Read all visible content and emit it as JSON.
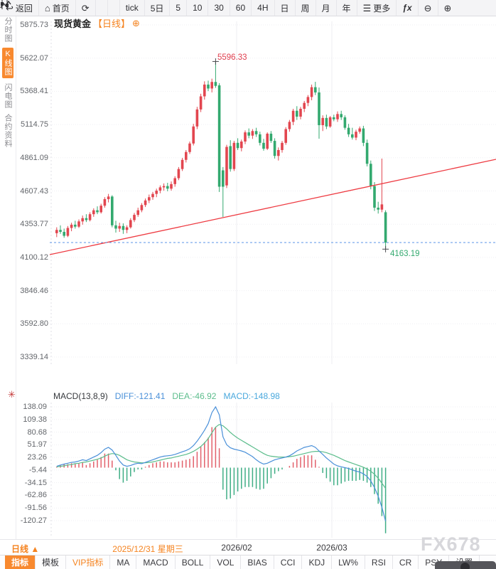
{
  "toolbar": {
    "back": "返回",
    "home": "首页",
    "tick": "tick",
    "d5": "5日",
    "m5": "5",
    "m10": "10",
    "m30": "30",
    "m60": "60",
    "h4": "4H",
    "day": "日",
    "week": "周",
    "month": "月",
    "year": "年",
    "more": "更多",
    "fx": "fx"
  },
  "sidebar": {
    "items": [
      {
        "label": "分时图",
        "active": false
      },
      {
        "label": "K线图",
        "active": true
      },
      {
        "label": "闪电图",
        "active": false
      },
      {
        "label": "合约资料",
        "active": false
      }
    ]
  },
  "chart": {
    "title": "现货黄金",
    "period_label": "【日线】",
    "y_axis": [
      "5875.73",
      "5622.07",
      "5368.41",
      "5114.75",
      "4861.09",
      "4607.43",
      "4353.77",
      "4100.12",
      "3846.46",
      "3592.80",
      "3339.14"
    ],
    "annotations": {
      "high": "5596.33",
      "low": "4163.19"
    }
  },
  "macd": {
    "title": "MACD(13,8,9)",
    "diff_label": "DIFF:-121.41",
    "dea_label": "DEA:-46.92",
    "macd_label": "MACD:-148.98",
    "y_axis": [
      "138.09",
      "109.38",
      "80.68",
      "51.97",
      "23.26",
      "-5.44",
      "-34.15",
      "-62.86",
      "-91.56",
      "-120.27"
    ]
  },
  "status": {
    "period": "日线",
    "arrow": "▲",
    "date": "2025/12/31 星期三",
    "month1": "2026/02",
    "month2": "2026/03"
  },
  "watermark": "FX678",
  "tabs": [
    {
      "label": "指标",
      "active": true
    },
    {
      "label": "模板"
    },
    {
      "label": "VIP指标",
      "vip": true
    },
    {
      "label": "MA"
    },
    {
      "label": "MACD"
    },
    {
      "label": "BOLL"
    },
    {
      "label": "VOL"
    },
    {
      "label": "BIAS"
    },
    {
      "label": "CCI"
    },
    {
      "label": "KDJ"
    },
    {
      "label": "LW%"
    },
    {
      "label": "RSI"
    },
    {
      "label": "CR"
    },
    {
      "label": "PSY"
    },
    {
      "label": "设置"
    }
  ],
  "colors": {
    "accent_orange": "#f5831f",
    "candle_up": "#e2464f",
    "candle_down": "#33a96f",
    "trend_line": "#ee3b42",
    "price_line": "#5b96e8",
    "diff_line": "#4a90d9",
    "dea_line": "#5cbd8c",
    "hist_up": "#e2606b",
    "hist_down": "#3fae85",
    "grid": "#efeff3",
    "grid_v": "#ececf1",
    "marker": "#4a4a4e"
  },
  "chart_data": {
    "type": "candlestick",
    "instrument": "现货黄金",
    "period": "日线",
    "x_axis_labels": [
      "2025/12/31 星期三",
      "2026/02",
      "2026/03"
    ],
    "y_axis_range": [
      3339.14,
      5875.73
    ],
    "high_annotation": 5596.33,
    "low_annotation": 4163.19,
    "last_close_line": 4213.7,
    "candles": [
      [
        4285,
        4330,
        4255,
        4310
      ],
      [
        4310,
        4345,
        4280,
        4295
      ],
      [
        4295,
        4320,
        4250,
        4265
      ],
      [
        4265,
        4340,
        4255,
        4325
      ],
      [
        4325,
        4365,
        4300,
        4350
      ],
      [
        4350,
        4380,
        4320,
        4335
      ],
      [
        4335,
        4390,
        4325,
        4375
      ],
      [
        4375,
        4420,
        4350,
        4400
      ],
      [
        4400,
        4430,
        4370,
        4385
      ],
      [
        4385,
        4445,
        4375,
        4430
      ],
      [
        4430,
        4475,
        4410,
        4460
      ],
      [
        4460,
        4490,
        4430,
        4445
      ],
      [
        4445,
        4510,
        4435,
        4495
      ],
      [
        4495,
        4560,
        4480,
        4545
      ],
      [
        4545,
        4585,
        4520,
        4565
      ],
      [
        4565,
        4575,
        4330,
        4345
      ],
      [
        4345,
        4380,
        4290,
        4320
      ],
      [
        4320,
        4365,
        4295,
        4340
      ],
      [
        4340,
        4360,
        4280,
        4310
      ],
      [
        4310,
        4345,
        4285,
        4330
      ],
      [
        4330,
        4400,
        4320,
        4385
      ],
      [
        4385,
        4440,
        4370,
        4425
      ],
      [
        4425,
        4480,
        4410,
        4460
      ],
      [
        4460,
        4515,
        4445,
        4500
      ],
      [
        4500,
        4550,
        4485,
        4535
      ],
      [
        4535,
        4580,
        4515,
        4560
      ],
      [
        4560,
        4600,
        4540,
        4585
      ],
      [
        4585,
        4625,
        4560,
        4610
      ],
      [
        4610,
        4650,
        4590,
        4635
      ],
      [
        4635,
        4665,
        4610,
        4645
      ],
      [
        4645,
        4670,
        4605,
        4625
      ],
      [
        4625,
        4680,
        4610,
        4660
      ],
      [
        4660,
        4720,
        4640,
        4705
      ],
      [
        4705,
        4790,
        4690,
        4775
      ],
      [
        4775,
        4860,
        4760,
        4845
      ],
      [
        4845,
        4920,
        4825,
        4905
      ],
      [
        4905,
        4985,
        4890,
        4970
      ],
      [
        4970,
        5120,
        4955,
        5100
      ],
      [
        5100,
        5250,
        5080,
        5230
      ],
      [
        5230,
        5350,
        5210,
        5330
      ],
      [
        5330,
        5445,
        5305,
        5420
      ],
      [
        5420,
        5450,
        5370,
        5390
      ],
      [
        5390,
        5465,
        5360,
        5440
      ],
      [
        5440,
        5596.33,
        5395,
        5410
      ],
      [
        5414,
        5430,
        4600,
        4640
      ],
      [
        4765,
        4790,
        4409,
        4640
      ],
      [
        4650,
        4960,
        4630,
        4944
      ],
      [
        4950,
        4995,
        4755,
        4775
      ],
      [
        4775,
        4990,
        4760,
        4975
      ],
      [
        4975,
        5010,
        4920,
        4935
      ],
      [
        4935,
        5000,
        4910,
        4985
      ],
      [
        4985,
        5070,
        4965,
        5055
      ],
      [
        5055,
        5085,
        5010,
        5030
      ],
      [
        5030,
        5080,
        5005,
        5065
      ],
      [
        5065,
        5090,
        5020,
        5040
      ],
      [
        5040,
        5060,
        4955,
        4975
      ],
      [
        4975,
        5005,
        4915,
        4930
      ],
      [
        4930,
        5055,
        4920,
        5045
      ],
      [
        5045,
        5065,
        4975,
        4990
      ],
      [
        4990,
        5010,
        4855,
        4875
      ],
      [
        4875,
        4940,
        4840,
        4920
      ],
      [
        4920,
        4990,
        4900,
        4975
      ],
      [
        4975,
        5095,
        4960,
        5080
      ],
      [
        5080,
        5150,
        5060,
        5135
      ],
      [
        5135,
        5235,
        5110,
        5220
      ],
      [
        5220,
        5255,
        5150,
        5175
      ],
      [
        5175,
        5250,
        5155,
        5235
      ],
      [
        5235,
        5295,
        5210,
        5280
      ],
      [
        5280,
        5340,
        5255,
        5325
      ],
      [
        5325,
        5420,
        5300,
        5400
      ],
      [
        5400,
        5441,
        5340,
        5360
      ],
      [
        5360,
        5398,
        5007,
        5110
      ],
      [
        5110,
        5185,
        5065,
        5165
      ],
      [
        5165,
        5190,
        5080,
        5100
      ],
      [
        5100,
        5180,
        5090,
        5170
      ],
      [
        5170,
        5190,
        5140,
        5155
      ],
      [
        5155,
        5215,
        5135,
        5195
      ],
      [
        5195,
        5220,
        5150,
        5170
      ],
      [
        5170,
        5185,
        5075,
        5090
      ],
      [
        5090,
        5120,
        5020,
        5040
      ],
      [
        5040,
        5090,
        5000,
        5015
      ],
      [
        5015,
        5075,
        4995,
        5060
      ],
      [
        5060,
        5100,
        5045,
        5085
      ],
      [
        5085,
        5105,
        4950,
        4975
      ],
      [
        4975,
        5000,
        4795,
        4815
      ],
      [
        4815,
        4840,
        4620,
        4645
      ],
      [
        4645,
        4675,
        4455,
        4480
      ],
      [
        4480,
        4525,
        4435,
        4465
      ],
      [
        4465,
        4855,
        4445,
        4505
      ],
      [
        4445,
        4460,
        4163.19,
        4213.7
      ]
    ],
    "macd": {
      "params": [
        13,
        8,
        9
      ],
      "hist_formula": "2*(diff-dea)",
      "last": {
        "diff": -121.41,
        "dea": -46.92,
        "macd": -148.98
      },
      "diff": [
        3,
        6,
        8,
        10,
        12,
        13,
        15,
        18,
        16,
        20,
        24,
        28,
        34,
        42,
        46,
        40,
        28,
        15,
        6,
        3,
        5,
        8,
        10,
        9,
        12,
        15,
        18,
        21,
        24,
        26,
        27,
        28,
        30,
        33,
        36,
        39,
        43,
        50,
        60,
        72,
        85,
        100,
        125,
        138,
        120,
        70,
        52,
        45,
        42,
        40,
        38,
        35,
        30,
        25,
        18,
        12,
        8,
        10,
        14,
        18,
        20,
        22,
        24,
        27,
        32,
        38,
        42,
        46,
        48,
        50,
        46,
        38,
        30,
        22,
        15,
        8,
        4,
        2,
        0,
        -2,
        -5,
        -8,
        -10,
        -14,
        -20,
        -30,
        -45,
        -65,
        -90,
        -121.41
      ],
      "dea": [
        2,
        3,
        4,
        6,
        7,
        9,
        10,
        12,
        13,
        15,
        17,
        19,
        22,
        26,
        30,
        32,
        31,
        28,
        23,
        18,
        15,
        13,
        12,
        11,
        11,
        12,
        13,
        15,
        17,
        19,
        21,
        22,
        24,
        26,
        28,
        30,
        33,
        37,
        42,
        48,
        56,
        66,
        79,
        92,
        98,
        95,
        88,
        80,
        73,
        67,
        62,
        57,
        52,
        47,
        42,
        37,
        32,
        28,
        26,
        25,
        24,
        24,
        24,
        25,
        26,
        28,
        30,
        32,
        34,
        36,
        37,
        37,
        36,
        34,
        31,
        28,
        24,
        20,
        16,
        13,
        10,
        7,
        4,
        1,
        -3,
        -8,
        -15,
        -24,
        -35,
        -46.92
      ]
    }
  }
}
